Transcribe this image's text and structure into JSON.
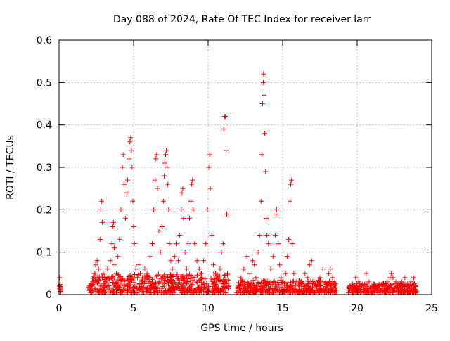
{
  "chart_data": {
    "type": "scatter",
    "title": "Day 088 of 2024, Rate Of TEC Index for receiver larr",
    "xlabel": "GPS time / hours",
    "ylabel": "ROTI / TECUs",
    "xlim": [
      0,
      25
    ],
    "ylim": [
      0,
      0.6
    ],
    "xticks": [
      0,
      5,
      10,
      15,
      20,
      25
    ],
    "xtick_labels": [
      "0",
      "5",
      "10",
      "15",
      "20",
      "25"
    ],
    "yticks": [
      0,
      0.1,
      0.2,
      0.3,
      0.4,
      0.5,
      0.6
    ],
    "ytick_labels": [
      "0",
      "0.1",
      "0.2",
      "0.3",
      "0.4",
      "0.5",
      "0.6"
    ],
    "grid": true,
    "marker": "plus",
    "color": "#ff0000",
    "series": [
      {
        "name": "ROTI",
        "points": [
          [
            0.0,
            0.015
          ],
          [
            0.02,
            0.02
          ],
          [
            0.05,
            0.04
          ],
          [
            0.08,
            0.012
          ],
          [
            0.1,
            0.018
          ],
          [
            0.12,
            0.008
          ],
          [
            2.05,
            0.01
          ],
          [
            2.15,
            0.02
          ],
          [
            2.25,
            0.03
          ],
          [
            2.35,
            0.05
          ],
          [
            2.45,
            0.07
          ],
          [
            2.55,
            0.08
          ],
          [
            2.65,
            0.06
          ],
          [
            2.75,
            0.13
          ],
          [
            2.8,
            0.2
          ],
          [
            2.85,
            0.22
          ],
          [
            2.9,
            0.17
          ],
          [
            2.95,
            0.05
          ],
          [
            3.05,
            0.04
          ],
          [
            3.15,
            0.03
          ],
          [
            3.25,
            0.06
          ],
          [
            3.35,
            0.04
          ],
          [
            3.45,
            0.08
          ],
          [
            3.55,
            0.12
          ],
          [
            3.6,
            0.16
          ],
          [
            3.65,
            0.17
          ],
          [
            3.7,
            0.11
          ],
          [
            3.75,
            0.07
          ],
          [
            3.85,
            0.05
          ],
          [
            3.95,
            0.09
          ],
          [
            4.05,
            0.13
          ],
          [
            4.15,
            0.2
          ],
          [
            4.25,
            0.3
          ],
          [
            4.3,
            0.33
          ],
          [
            4.35,
            0.26
          ],
          [
            4.45,
            0.18
          ],
          [
            4.55,
            0.24
          ],
          [
            4.6,
            0.27
          ],
          [
            4.7,
            0.32
          ],
          [
            4.75,
            0.36
          ],
          [
            4.8,
            0.37
          ],
          [
            4.85,
            0.34
          ],
          [
            4.9,
            0.3
          ],
          [
            4.95,
            0.22
          ],
          [
            5.0,
            0.16
          ],
          [
            5.05,
            0.12
          ],
          [
            5.15,
            0.06
          ],
          [
            5.25,
            0.04
          ],
          [
            5.35,
            0.07
          ],
          [
            5.45,
            0.05
          ],
          [
            5.6,
            0.03
          ],
          [
            5.75,
            0.06
          ],
          [
            5.9,
            0.05
          ],
          [
            6.0,
            0.04
          ],
          [
            6.1,
            0.09
          ],
          [
            6.25,
            0.12
          ],
          [
            6.35,
            0.2
          ],
          [
            6.45,
            0.27
          ],
          [
            6.5,
            0.32
          ],
          [
            6.55,
            0.33
          ],
          [
            6.6,
            0.25
          ],
          [
            6.7,
            0.15
          ],
          [
            6.8,
            0.1
          ],
          [
            6.9,
            0.16
          ],
          [
            7.0,
            0.22
          ],
          [
            7.05,
            0.28
          ],
          [
            7.1,
            0.31
          ],
          [
            7.15,
            0.33
          ],
          [
            7.2,
            0.34
          ],
          [
            7.25,
            0.3
          ],
          [
            7.3,
            0.26
          ],
          [
            7.35,
            0.2
          ],
          [
            7.4,
            0.12
          ],
          [
            7.5,
            0.08
          ],
          [
            7.6,
            0.06
          ],
          [
            7.75,
            0.09
          ],
          [
            7.9,
            0.12
          ],
          [
            8.0,
            0.08
          ],
          [
            8.1,
            0.14
          ],
          [
            8.2,
            0.2
          ],
          [
            8.25,
            0.24
          ],
          [
            8.3,
            0.25
          ],
          [
            8.35,
            0.18
          ],
          [
            8.45,
            0.1
          ],
          [
            8.55,
            0.06
          ],
          [
            8.65,
            0.12
          ],
          [
            8.75,
            0.18
          ],
          [
            8.85,
            0.22
          ],
          [
            8.9,
            0.26
          ],
          [
            8.95,
            0.27
          ],
          [
            9.0,
            0.2
          ],
          [
            9.1,
            0.12
          ],
          [
            9.25,
            0.08
          ],
          [
            9.4,
            0.06
          ],
          [
            9.55,
            0.05
          ],
          [
            9.7,
            0.08
          ],
          [
            9.85,
            0.12
          ],
          [
            9.95,
            0.2
          ],
          [
            10.05,
            0.3
          ],
          [
            10.1,
            0.33
          ],
          [
            10.15,
            0.25
          ],
          [
            10.25,
            0.14
          ],
          [
            10.35,
            0.07
          ],
          [
            10.5,
            0.05
          ],
          [
            10.65,
            0.04
          ],
          [
            10.8,
            0.06
          ],
          [
            10.9,
            0.1
          ],
          [
            11.0,
            0.12
          ],
          [
            11.05,
            0.39
          ],
          [
            11.1,
            0.42
          ],
          [
            11.15,
            0.42
          ],
          [
            11.2,
            0.34
          ],
          [
            11.25,
            0.19
          ],
          [
            11.3,
            0.05
          ],
          [
            11.4,
            0.02
          ],
          [
            12.0,
            0.02
          ],
          [
            12.2,
            0.04
          ],
          [
            12.4,
            0.06
          ],
          [
            12.6,
            0.09
          ],
          [
            12.8,
            0.05
          ],
          [
            13.0,
            0.08
          ],
          [
            13.1,
            0.07
          ],
          [
            13.2,
            0.04
          ],
          [
            13.35,
            0.1
          ],
          [
            13.45,
            0.14
          ],
          [
            13.55,
            0.22
          ],
          [
            13.6,
            0.33
          ],
          [
            13.65,
            0.45
          ],
          [
            13.7,
            0.5
          ],
          [
            13.72,
            0.52
          ],
          [
            13.75,
            0.47
          ],
          [
            13.8,
            0.38
          ],
          [
            13.85,
            0.29
          ],
          [
            13.9,
            0.18
          ],
          [
            13.95,
            0.14
          ],
          [
            14.05,
            0.12
          ],
          [
            14.2,
            0.06
          ],
          [
            14.35,
            0.09
          ],
          [
            14.5,
            0.14
          ],
          [
            14.55,
            0.19
          ],
          [
            14.6,
            0.2
          ],
          [
            14.7,
            0.12
          ],
          [
            14.8,
            0.07
          ],
          [
            14.9,
            0.04
          ],
          [
            15.05,
            0.03
          ],
          [
            15.2,
            0.05
          ],
          [
            15.3,
            0.09
          ],
          [
            15.4,
            0.13
          ],
          [
            15.5,
            0.22
          ],
          [
            15.55,
            0.26
          ],
          [
            15.6,
            0.27
          ],
          [
            15.65,
            0.12
          ],
          [
            15.75,
            0.05
          ],
          [
            15.9,
            0.03
          ],
          [
            16.1,
            0.02
          ],
          [
            16.3,
            0.03
          ],
          [
            16.5,
            0.05
          ],
          [
            16.65,
            0.04
          ],
          [
            16.8,
            0.07
          ],
          [
            16.95,
            0.08
          ],
          [
            17.1,
            0.03
          ],
          [
            17.3,
            0.02
          ],
          [
            17.5,
            0.04
          ],
          [
            17.7,
            0.06
          ],
          [
            17.9,
            0.03
          ],
          [
            18.1,
            0.05
          ],
          [
            18.2,
            0.06
          ],
          [
            18.35,
            0.04
          ],
          [
            18.5,
            0.02
          ],
          [
            18.6,
            0.01
          ],
          [
            19.5,
            0.01
          ],
          [
            19.7,
            0.02
          ],
          [
            19.9,
            0.04
          ],
          [
            20.1,
            0.03
          ],
          [
            20.3,
            0.02
          ],
          [
            20.5,
            0.01
          ],
          [
            20.6,
            0.05
          ],
          [
            20.8,
            0.03
          ],
          [
            21.0,
            0.02
          ],
          [
            21.2,
            0.01
          ],
          [
            21.4,
            0.02
          ],
          [
            21.6,
            0.01
          ],
          [
            21.8,
            0.02
          ],
          [
            22.0,
            0.03
          ],
          [
            22.2,
            0.04
          ],
          [
            22.3,
            0.05
          ],
          [
            22.4,
            0.04
          ],
          [
            22.6,
            0.03
          ],
          [
            22.8,
            0.02
          ],
          [
            23.0,
            0.03
          ],
          [
            23.2,
            0.04
          ],
          [
            23.4,
            0.02
          ],
          [
            23.6,
            0.03
          ],
          [
            23.8,
            0.04
          ],
          [
            23.9,
            0.02
          ]
        ]
      }
    ],
    "dense_segments": [
      [
        0.0,
        0.12,
        0.02
      ],
      [
        2.0,
        11.4,
        0.045
      ],
      [
        11.9,
        18.6,
        0.03
      ],
      [
        19.4,
        24.0,
        0.022
      ]
    ]
  }
}
